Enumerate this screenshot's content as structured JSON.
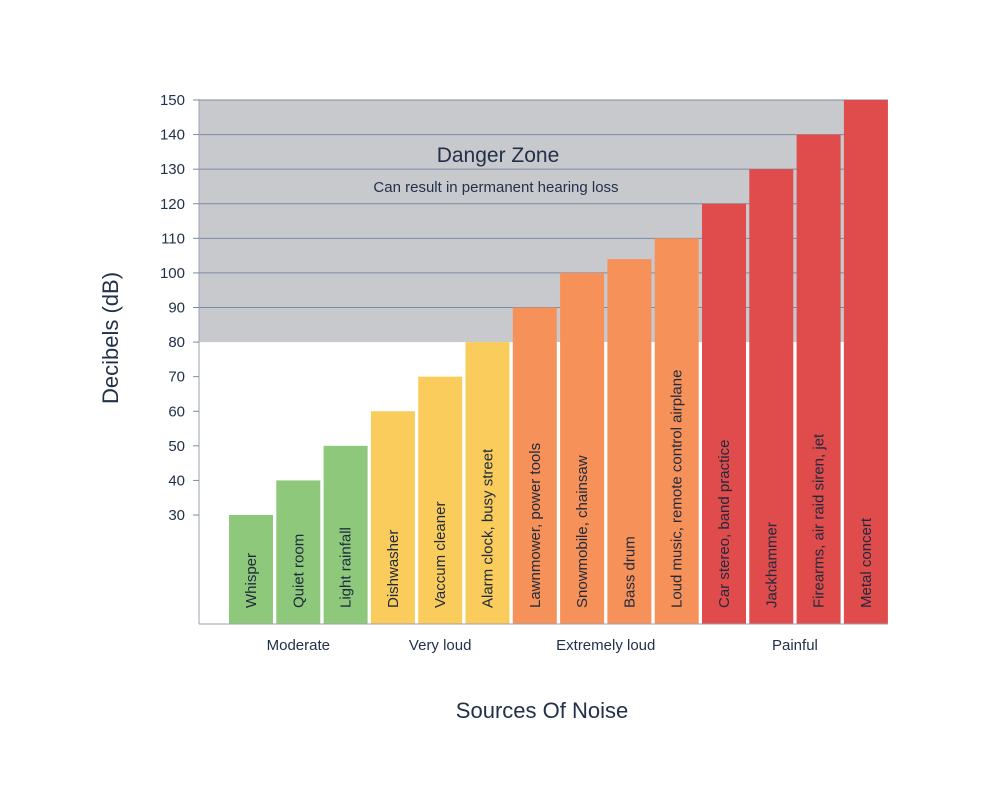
{
  "chart_data": {
    "type": "bar",
    "xlabel": "Sources Of Noise",
    "ylabel": "Decibels (dB)",
    "yticks": [
      30,
      40,
      50,
      60,
      70,
      80,
      90,
      100,
      110,
      120,
      130,
      140,
      150
    ],
    "ylim": [
      0,
      150
    ],
    "danger_zone": {
      "title": "Danger Zone",
      "subtitle": "Can result in permanent hearing loss",
      "from": 80,
      "to": 150,
      "color": "#c8c9cc"
    },
    "groups": [
      {
        "label": "Moderate",
        "color": "#8ec97b"
      },
      {
        "label": "Very loud",
        "color": "#f9cc5c"
      },
      {
        "label": "Extremely loud",
        "color": "#f7915a"
      },
      {
        "label": "Painful",
        "color": "#e04b4b"
      }
    ],
    "bars": [
      {
        "label": "Whisper",
        "value": 30,
        "group": 0
      },
      {
        "label": "Quiet room",
        "value": 40,
        "group": 0
      },
      {
        "label": "Light rainfall",
        "value": 50,
        "group": 0
      },
      {
        "label": "Dishwasher",
        "value": 60,
        "group": 1
      },
      {
        "label": "Vaccum cleaner",
        "value": 70,
        "group": 1
      },
      {
        "label": "Alarm clock, busy street",
        "value": 80,
        "group": 1
      },
      {
        "label": "Lawnmower, power tools",
        "value": 90,
        "group": 2
      },
      {
        "label": "Snowmobile, chainsaw",
        "value": 100,
        "group": 2
      },
      {
        "label": "Bass drum",
        "value": 104,
        "group": 2
      },
      {
        "label": "Loud music, remote control airplane",
        "value": 110,
        "group": 2
      },
      {
        "label": "Car stereo, band practice",
        "value": 120,
        "group": 3
      },
      {
        "label": "Jackhammer",
        "value": 130,
        "group": 3
      },
      {
        "label": "Firearms, air raid siren, jet",
        "value": 140,
        "group": 3
      },
      {
        "label": "Metal concert",
        "value": 150,
        "group": 3
      }
    ]
  }
}
